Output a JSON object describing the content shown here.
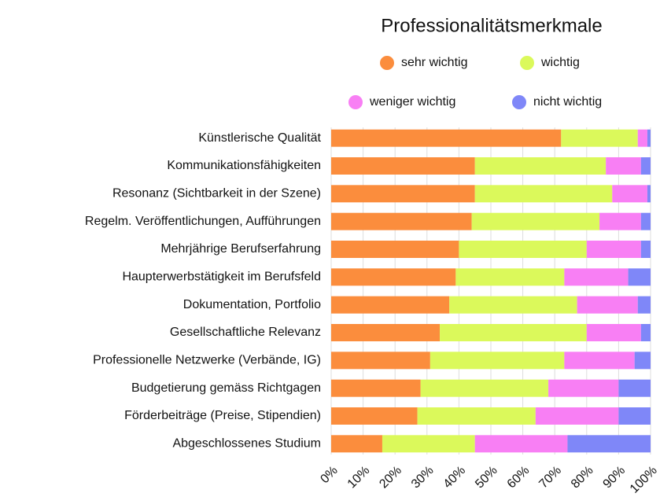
{
  "chart_data": {
    "type": "stacked_barh",
    "title": "Professionalitätsmerkmale",
    "categories": [
      "Künstlerische Qualität",
      "Kommunikationsfähigkeiten",
      "Resonanz (Sichtbarkeit in der Szene)",
      "Regelm. Veröffentlichungen, Aufführungen",
      "Mehrjährige Berufserfahrung",
      "Haupterwerbstätigkeit im Berufsfeld",
      "Dokumentation, Portfolio",
      "Gesellschaftliche Relevanz",
      "Professionelle Netzwerke (Verbände, IG)",
      "Budgetierung gemäss Richtgagen",
      "Förderbeiträge (Preise, Stipendien)",
      "Abgeschlossenes Studium"
    ],
    "series": [
      {
        "name": "sehr wichtig",
        "color": "#fb8d3d",
        "values": [
          72,
          45,
          45,
          44,
          40,
          39,
          37,
          34,
          31,
          28,
          27,
          16
        ]
      },
      {
        "name": "wichtig",
        "color": "#dbf95b",
        "values": [
          24,
          41,
          43,
          40,
          40,
          34,
          40,
          46,
          42,
          40,
          37,
          29
        ]
      },
      {
        "name": "weniger wichtig",
        "color": "#f87ff4",
        "values": [
          3,
          11,
          11,
          13,
          17,
          20,
          19,
          17,
          22,
          22,
          26,
          29
        ]
      },
      {
        "name": "nicht wichtig",
        "color": "#7f87f8",
        "values": [
          1,
          3,
          1,
          3,
          3,
          7,
          4,
          3,
          5,
          10,
          10,
          26
        ]
      }
    ],
    "xlim": [
      0,
      100
    ],
    "xticks": [
      {
        "value": 0,
        "label": "0%"
      },
      {
        "value": 10,
        "label": "10%"
      },
      {
        "value": 20,
        "label": "20%"
      },
      {
        "value": 30,
        "label": "30%"
      },
      {
        "value": 40,
        "label": "40%"
      },
      {
        "value": 50,
        "label": "50%"
      },
      {
        "value": 60,
        "label": "60%"
      },
      {
        "value": 70,
        "label": "70%"
      },
      {
        "value": 80,
        "label": "80%"
      },
      {
        "value": 90,
        "label": "90%"
      },
      {
        "value": 100,
        "label": "100%"
      }
    ],
    "grid": true
  }
}
